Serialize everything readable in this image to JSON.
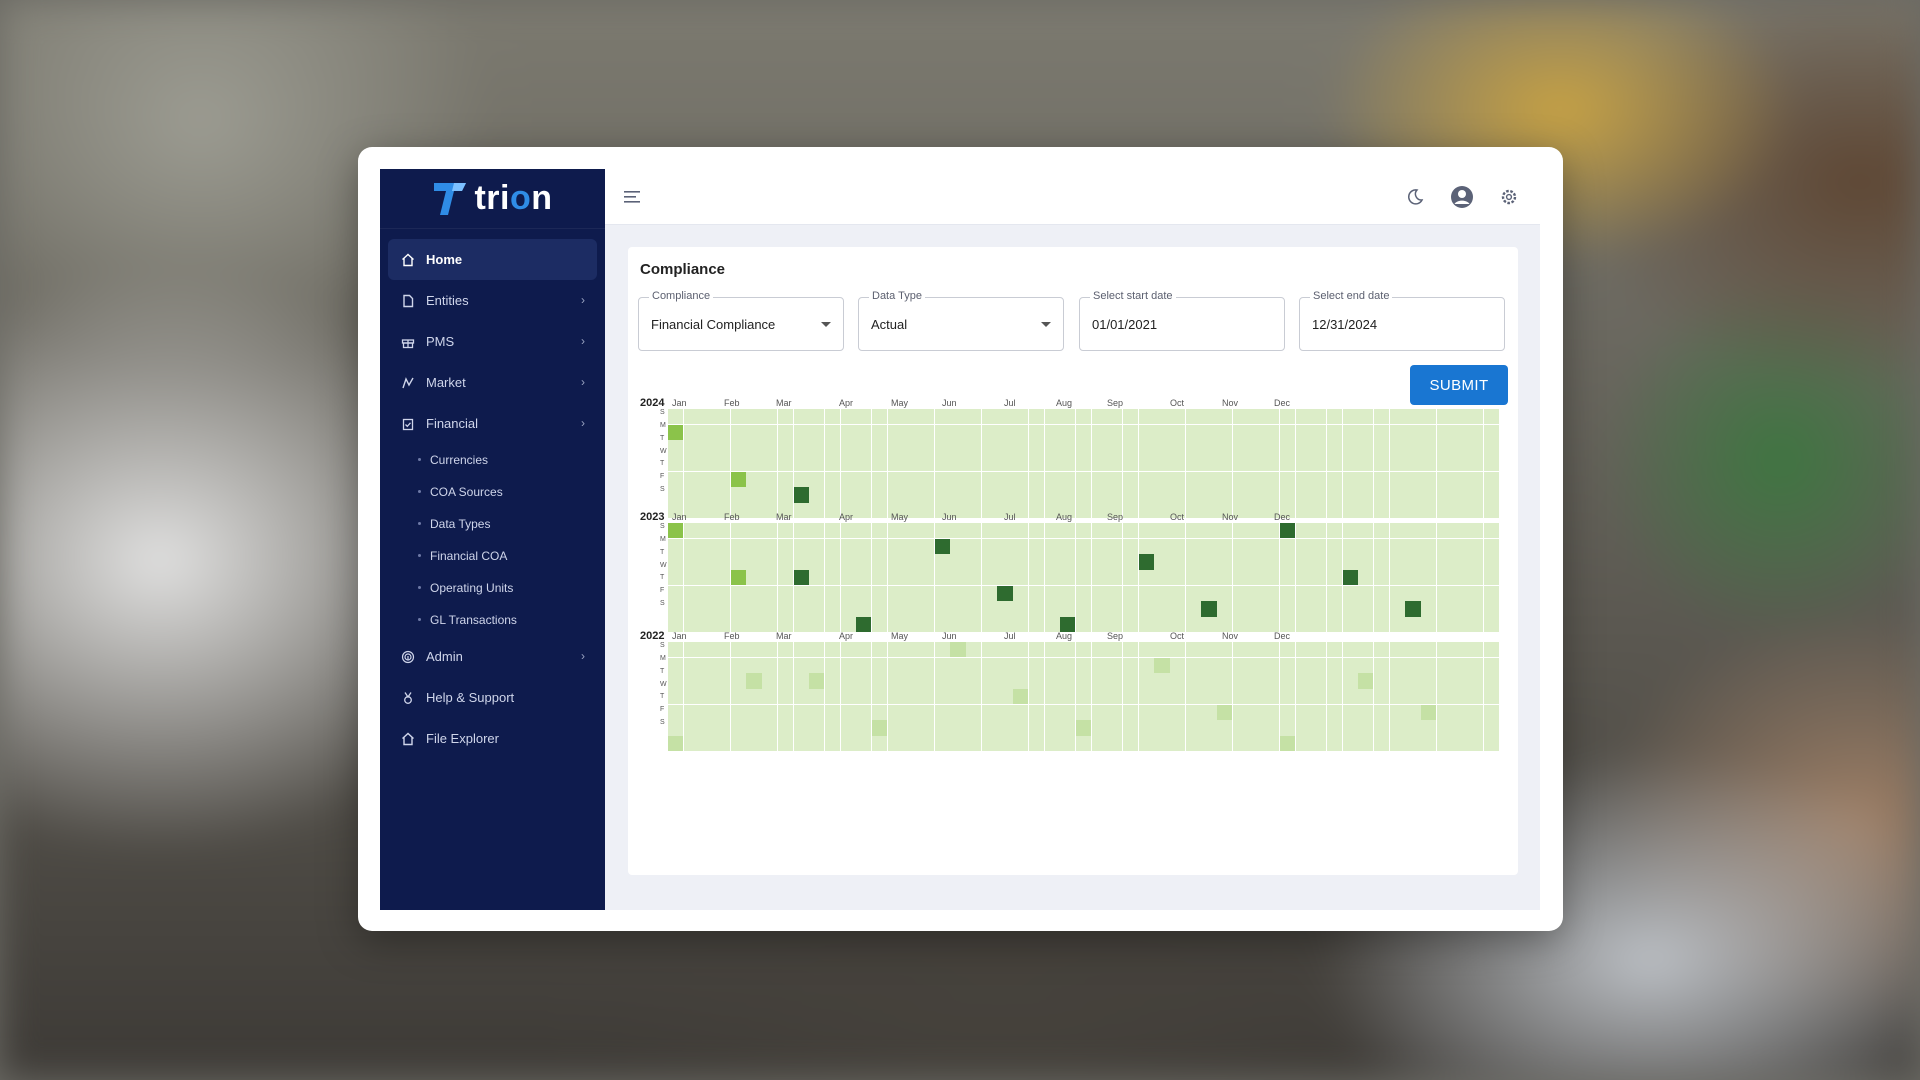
{
  "brand": {
    "name_prefix": "tri",
    "name_o": "o",
    "name_suffix": "n"
  },
  "sidebar": {
    "items": [
      {
        "label": "Home",
        "icon": "home-icon",
        "active": true,
        "chevron": false
      },
      {
        "label": "Entities",
        "icon": "file-icon",
        "chevron": true
      },
      {
        "label": "PMS",
        "icon": "gift-icon",
        "chevron": true
      },
      {
        "label": "Market",
        "icon": "market-icon",
        "chevron": true
      },
      {
        "label": "Financial",
        "icon": "clipboard-icon",
        "chevron": true
      }
    ],
    "financial_sub": [
      "Currencies",
      "COA Sources",
      "Data Types",
      "Financial COA",
      "Operating Units",
      "GL Transactions"
    ],
    "bottom_items": [
      {
        "label": "Admin",
        "icon": "fingerprint-icon",
        "chevron": true
      },
      {
        "label": "Help & Support",
        "icon": "medal-icon",
        "chevron": false
      },
      {
        "label": "File Explorer",
        "icon": "home-icon",
        "chevron": false
      }
    ]
  },
  "topbar": {
    "menu_icon": "hamburger-icon",
    "icons": [
      "moon-icon",
      "account-icon",
      "gear-icon"
    ]
  },
  "compliance": {
    "title": "Compliance",
    "filters": {
      "compliance": {
        "label": "Compliance",
        "value": "Financial Compliance"
      },
      "data_type": {
        "label": "Data Type",
        "value": "Actual"
      },
      "start_date": {
        "label": "Select start date",
        "value": "01/01/2021"
      },
      "end_date": {
        "label": "Select end date",
        "value": "12/31/2024"
      }
    },
    "submit_label": "SUBMIT"
  },
  "heatmaps": {
    "months": [
      "Jan",
      "Feb",
      "Mar",
      "Apr",
      "May",
      "Jun",
      "Jul",
      "Aug",
      "Sep",
      "Oct",
      "Nov",
      "Dec"
    ],
    "days": [
      "S",
      "M",
      "T",
      "W",
      "T",
      "F",
      "S"
    ],
    "years": [
      {
        "year": "2024",
        "marks": [
          {
            "week": 0,
            "day": 1,
            "level": 2
          },
          {
            "week": 4,
            "day": 4,
            "level": 2
          },
          {
            "week": 8,
            "day": 5,
            "level": 3
          }
        ]
      },
      {
        "year": "2023",
        "marks": [
          {
            "week": 0,
            "day": 0,
            "level": 2
          },
          {
            "week": 4,
            "day": 3,
            "level": 2
          },
          {
            "week": 8,
            "day": 3,
            "level": 3
          },
          {
            "week": 12,
            "day": 6,
            "level": 3
          },
          {
            "week": 17,
            "day": 1,
            "level": 3
          },
          {
            "week": 21,
            "day": 4,
            "level": 3
          },
          {
            "week": 25,
            "day": 6,
            "level": 3
          },
          {
            "week": 30,
            "day": 2,
            "level": 3
          },
          {
            "week": 34,
            "day": 5,
            "level": 3
          },
          {
            "week": 39,
            "day": 0,
            "level": 3
          },
          {
            "week": 43,
            "day": 3,
            "level": 3
          },
          {
            "week": 47,
            "day": 5,
            "level": 3
          }
        ]
      },
      {
        "year": "2022",
        "marks": [
          {
            "week": 0,
            "day": 6,
            "level": 1
          },
          {
            "week": 5,
            "day": 2,
            "level": 1
          },
          {
            "week": 9,
            "day": 2,
            "level": 1
          },
          {
            "week": 13,
            "day": 5,
            "level": 1
          },
          {
            "week": 18,
            "day": 0,
            "level": 1
          },
          {
            "week": 22,
            "day": 3,
            "level": 1
          },
          {
            "week": 26,
            "day": 5,
            "level": 1
          },
          {
            "week": 31,
            "day": 1,
            "level": 1
          },
          {
            "week": 35,
            "day": 4,
            "level": 1
          },
          {
            "week": 39,
            "day": 6,
            "level": 1
          },
          {
            "week": 44,
            "day": 2,
            "level": 1
          },
          {
            "week": 48,
            "day": 4,
            "level": 1
          }
        ]
      }
    ]
  }
}
